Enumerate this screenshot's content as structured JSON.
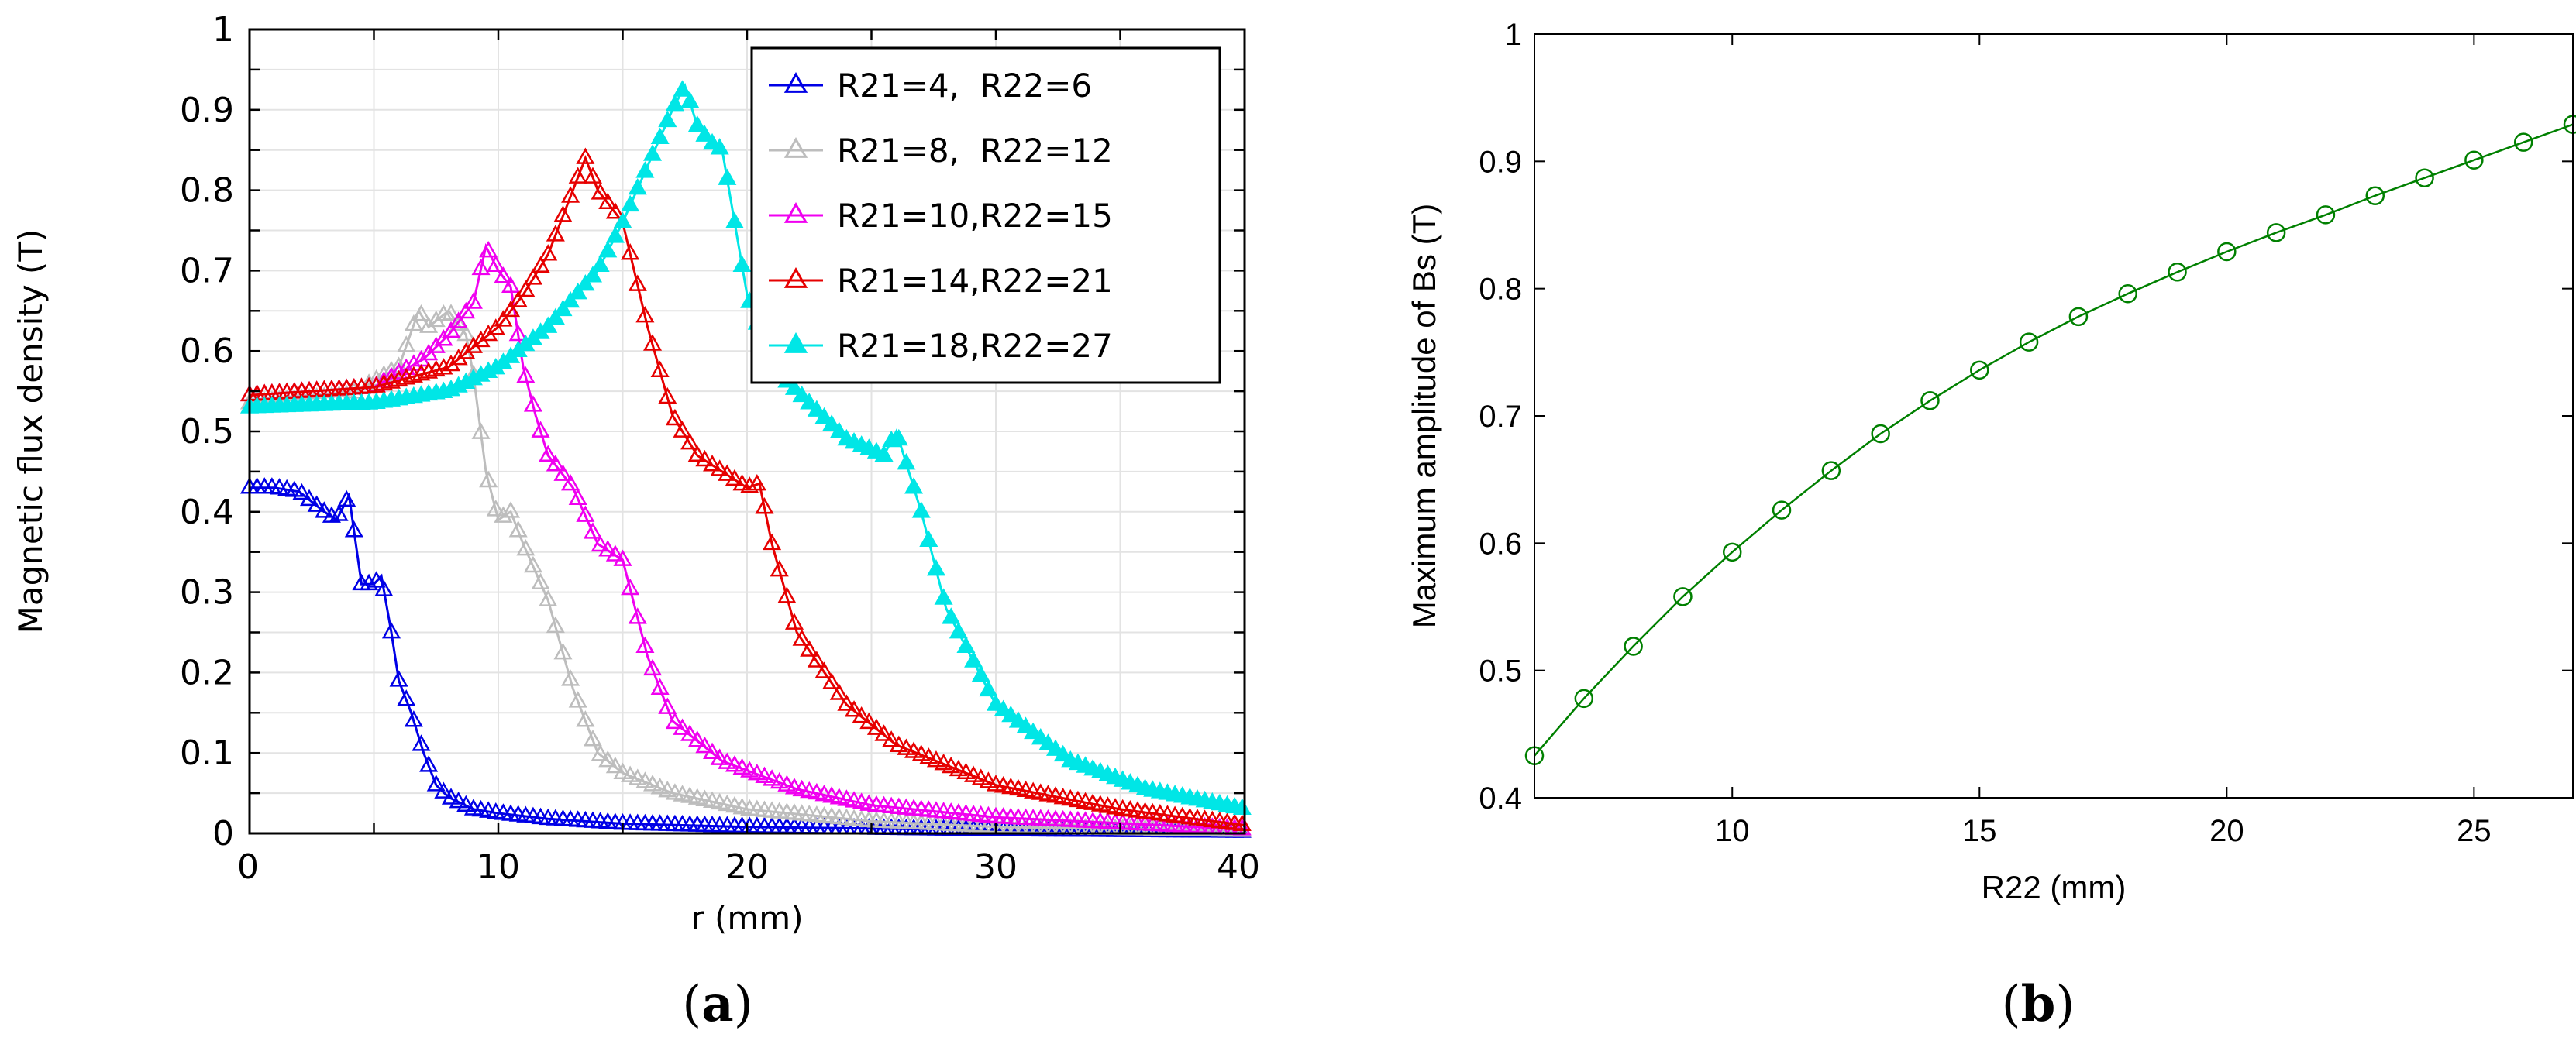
{
  "chart_data": [
    {
      "type": "line",
      "panel": "a",
      "caption": {
        "open": "(",
        "letter": "a",
        "close": ")"
      },
      "xlabel": "r (mm)",
      "ylabel": "Magnetic flux density (T)",
      "xlim": [
        0,
        40
      ],
      "ylim": [
        0,
        1
      ],
      "xticks": [
        "0",
        "10",
        "20",
        "30",
        "40"
      ],
      "yticks": [
        "0",
        "0.1",
        "0.2",
        "0.3",
        "0.4",
        "0.5",
        "0.6",
        "0.7",
        "0.8",
        "0.9",
        "1"
      ],
      "grid": true,
      "legend_position": "top-right",
      "marker": "triangle",
      "series": [
        {
          "name": "R21=4,  R22=6",
          "color": "#0000e6",
          "filled": false,
          "x": [
            0,
            1,
            2,
            3,
            3.5,
            4,
            4.5,
            5,
            5.3,
            5.7,
            6,
            6.5,
            7,
            7.5,
            8,
            9,
            10,
            12,
            15,
            20,
            30,
            40
          ],
          "y": [
            0.43,
            0.43,
            0.425,
            0.4,
            0.39,
            0.42,
            0.31,
            0.31,
            0.32,
            0.25,
            0.19,
            0.15,
            0.1,
            0.06,
            0.045,
            0.03,
            0.025,
            0.018,
            0.012,
            0.008,
            0.004,
            0.002
          ]
        },
        {
          "name": "R21=8,  R22=12",
          "color": "#bdbdbd",
          "filled": false,
          "x": [
            0,
            4,
            6,
            6.8,
            7.2,
            8,
            8.7,
            9,
            9.5,
            10,
            10.5,
            11,
            12,
            13,
            14,
            15,
            17,
            20,
            25,
            30,
            40
          ],
          "y": [
            0.535,
            0.545,
            0.58,
            0.65,
            0.63,
            0.65,
            0.62,
            0.57,
            0.45,
            0.39,
            0.4,
            0.36,
            0.29,
            0.18,
            0.1,
            0.075,
            0.05,
            0.03,
            0.015,
            0.008,
            0.003
          ]
        },
        {
          "name": "R21=10,R22=15",
          "color": "#f000f0",
          "filled": false,
          "x": [
            0,
            5,
            7,
            8,
            9,
            9.5,
            10,
            10.5,
            11,
            11.5,
            12,
            13,
            14,
            15,
            16,
            17,
            19,
            22,
            25,
            30,
            40
          ],
          "y": [
            0.545,
            0.555,
            0.59,
            0.62,
            0.66,
            0.73,
            0.7,
            0.68,
            0.58,
            0.52,
            0.47,
            0.43,
            0.36,
            0.34,
            0.22,
            0.14,
            0.09,
            0.055,
            0.035,
            0.02,
            0.005
          ]
        },
        {
          "name": "R21=14,R22=21",
          "color": "#e60000",
          "filled": false,
          "x": [
            0,
            5,
            8,
            10,
            11,
            12,
            13,
            13.5,
            14,
            14.5,
            15,
            16,
            17,
            18,
            19,
            20,
            20.5,
            21,
            22,
            24,
            26,
            30,
            35,
            40
          ],
          "y": [
            0.545,
            0.555,
            0.58,
            0.63,
            0.67,
            0.72,
            0.8,
            0.84,
            0.8,
            0.78,
            0.76,
            0.63,
            0.52,
            0.47,
            0.45,
            0.43,
            0.435,
            0.36,
            0.25,
            0.16,
            0.11,
            0.06,
            0.03,
            0.01
          ]
        },
        {
          "name": "R21=18,R22=27",
          "color": "#00e6e6",
          "filled": true,
          "x": [
            0,
            5,
            8,
            10,
            12,
            14,
            15,
            16,
            17,
            17.5,
            18,
            18.5,
            19,
            20,
            21,
            22,
            24,
            25.5,
            26,
            26.5,
            27,
            28,
            30,
            33,
            36,
            40
          ],
          "y": [
            0.53,
            0.535,
            0.55,
            0.58,
            0.63,
            0.7,
            0.76,
            0.83,
            0.9,
            0.93,
            0.88,
            0.86,
            0.85,
            0.67,
            0.58,
            0.55,
            0.49,
            0.47,
            0.5,
            0.45,
            0.4,
            0.28,
            0.16,
            0.09,
            0.055,
            0.03
          ]
        }
      ]
    },
    {
      "type": "line",
      "panel": "b",
      "caption": {
        "open": "(",
        "letter": "b",
        "close": ")"
      },
      "xlabel": "R22 (mm)",
      "ylabel": "Maximum amplitude of Bs (T)",
      "xlim": [
        6,
        27
      ],
      "ylim": [
        0.4,
        1
      ],
      "xticks": [
        "10",
        "15",
        "20",
        "25"
      ],
      "yticks": [
        "0.4",
        "0.5",
        "0.6",
        "0.7",
        "0.8",
        "0.9",
        "1"
      ],
      "grid": false,
      "marker": "circle",
      "color": "#008000",
      "x": [
        6,
        7,
        8,
        9,
        10,
        11,
        12,
        13,
        14,
        15,
        16,
        17,
        18,
        19,
        20,
        21,
        22,
        23,
        24,
        25,
        26,
        27
      ],
      "y": [
        0.433,
        0.478,
        0.519,
        0.558,
        0.593,
        0.626,
        0.657,
        0.686,
        0.712,
        0.736,
        0.758,
        0.778,
        0.796,
        0.813,
        0.829,
        0.844,
        0.858,
        0.873,
        0.887,
        0.901,
        0.915,
        0.929
      ]
    }
  ]
}
